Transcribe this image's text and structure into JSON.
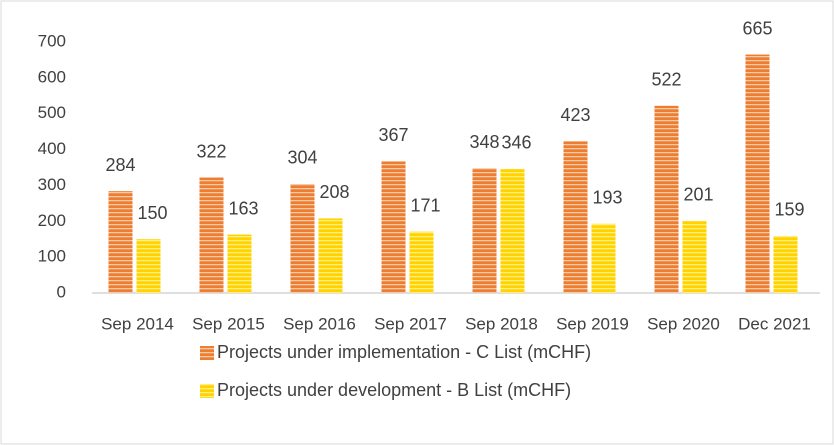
{
  "chart_data": {
    "type": "bar",
    "categories": [
      "Sep 2014",
      "Sep 2015",
      "Sep 2016",
      "Sep 2017",
      "Sep 2018",
      "Sep 2019",
      "Sep 2020",
      "Dec 2021"
    ],
    "series": [
      {
        "name": "Projects under implementation - C List (mCHF)",
        "color": "#ED7D31",
        "values": [
          284,
          322,
          304,
          367,
          348,
          423,
          522,
          665
        ]
      },
      {
        "name": "Projects under development - B List (mCHF)",
        "color": "#FFD700",
        "values": [
          150,
          163,
          208,
          171,
          346,
          193,
          201,
          159
        ]
      }
    ],
    "ylim": [
      0,
      700
    ],
    "yticks": [
      0,
      100,
      200,
      300,
      400,
      500,
      600,
      700
    ],
    "grid": false,
    "legend": "bottom"
  }
}
